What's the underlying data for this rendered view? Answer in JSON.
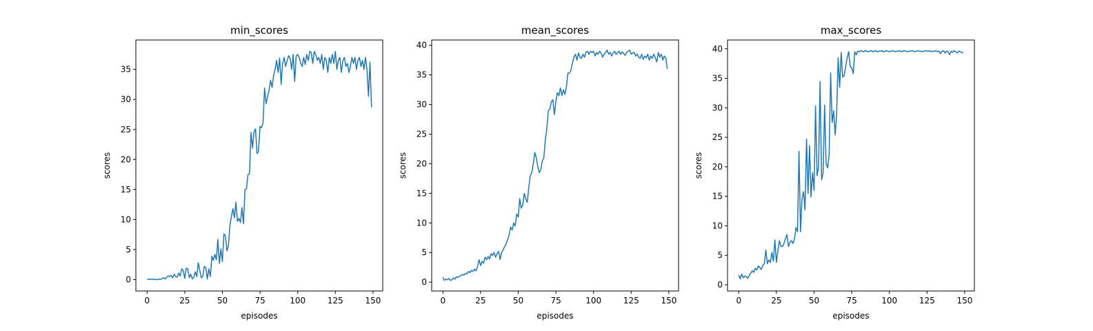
{
  "chart_data": [
    {
      "type": "line",
      "title": "min_scores",
      "x_label": "episodes",
      "y_label": "scores",
      "color": "#1f77b4",
      "x": [
        0,
        1,
        2,
        3,
        4,
        5,
        6,
        7,
        8,
        9,
        10,
        11,
        12,
        13,
        14,
        15,
        16,
        17,
        18,
        19,
        20,
        21,
        22,
        23,
        24,
        25,
        26,
        27,
        28,
        29,
        30,
        31,
        32,
        33,
        34,
        35,
        36,
        37,
        38,
        39,
        40,
        41,
        42,
        43,
        44,
        45,
        46,
        47,
        48,
        49,
        50,
        51,
        52,
        53,
        54,
        55,
        56,
        57,
        58,
        59,
        60,
        61,
        62,
        63,
        64,
        65,
        66,
        67,
        68,
        69,
        70,
        71,
        72,
        73,
        74,
        75,
        76,
        77,
        78,
        79,
        80,
        81,
        82,
        83,
        84,
        85,
        86,
        87,
        88,
        89,
        90,
        91,
        92,
        93,
        94,
        95,
        96,
        97,
        98,
        99,
        100,
        101,
        102,
        103,
        104,
        105,
        106,
        107,
        108,
        109,
        110,
        111,
        112,
        113,
        114,
        115,
        116,
        117,
        118,
        119,
        120,
        121,
        122,
        123,
        124,
        125,
        126,
        127,
        128,
        129,
        130,
        131,
        132,
        133,
        134,
        135,
        136,
        137,
        138,
        139,
        140,
        141,
        142,
        143,
        144,
        145,
        146,
        147,
        148,
        149
      ],
      "values": [
        0.1,
        0.05,
        0.0,
        0.1,
        0.0,
        0.05,
        0.0,
        0.0,
        0.1,
        0.0,
        0.2,
        0.3,
        0.1,
        0.4,
        0.6,
        0.5,
        0.7,
        0.3,
        0.9,
        0.5,
        0.4,
        1.1,
        0.6,
        1.8,
        1.5,
        0.2,
        1.9,
        1.8,
        0.3,
        0.9,
        0.1,
        0.4,
        1.3,
        0.5,
        2.8,
        1.5,
        0.3,
        0.6,
        2.2,
        2.0,
        0.1,
        1.8,
        0.5,
        3.9,
        3.2,
        4.2,
        3.3,
        6.7,
        2.7,
        5.1,
        3.0,
        7.6,
        7.3,
        4.8,
        5.6,
        9.0,
        10.5,
        11.8,
        10.3,
        12.9,
        9.7,
        10.2,
        9.5,
        12.0,
        9.3,
        15.0,
        15.1,
        17.5,
        17.6,
        24.5,
        21.9,
        24.6,
        25.1,
        21.0,
        21.4,
        25.5,
        25.3,
        26.1,
        31.9,
        29.3,
        30.5,
        31.5,
        33.2,
        32.0,
        34.0,
        35.0,
        36.5,
        34.5,
        36.9,
        32.5,
        36.0,
        37.0,
        35.5,
        36.5,
        37.3,
        36.8,
        35.0,
        37.5,
        33.0,
        37.2,
        37.5,
        37.0,
        36.0,
        35.5,
        37.0,
        35.8,
        37.5,
        36.5,
        38.0,
        37.8,
        36.0,
        38.0,
        37.5,
        36.5,
        37.0,
        36.0,
        37.5,
        35.0,
        37.0,
        36.5,
        34.5,
        37.0,
        36.0,
        37.5,
        36.0,
        38.0,
        35.0,
        36.5,
        37.0,
        34.5,
        36.5,
        37.0,
        35.5,
        36.0,
        34.5,
        35.5,
        37.0,
        36.0,
        37.0,
        35.0,
        36.5,
        37.0,
        35.5,
        36.5,
        35.0,
        37.0,
        35.0,
        30.5,
        36.2,
        28.7
      ],
      "xlim": [
        -7.45,
        156.45
      ],
      "xticks": [
        0,
        25,
        50,
        75,
        100,
        125,
        150
      ],
      "ylim": [
        -1.9,
        39.9
      ],
      "yticks": [
        0,
        5,
        10,
        15,
        20,
        25,
        30,
        35
      ]
    },
    {
      "type": "line",
      "title": "mean_scores",
      "x_label": "episodes",
      "y_label": "scores",
      "color": "#1f77b4",
      "x": [
        0,
        1,
        2,
        3,
        4,
        5,
        6,
        7,
        8,
        9,
        10,
        11,
        12,
        13,
        14,
        15,
        16,
        17,
        18,
        19,
        20,
        21,
        22,
        23,
        24,
        25,
        26,
        27,
        28,
        29,
        30,
        31,
        32,
        33,
        34,
        35,
        36,
        37,
        38,
        39,
        40,
        41,
        42,
        43,
        44,
        45,
        46,
        47,
        48,
        49,
        50,
        51,
        52,
        53,
        54,
        55,
        56,
        57,
        58,
        59,
        60,
        61,
        62,
        63,
        64,
        65,
        66,
        67,
        68,
        69,
        70,
        71,
        72,
        73,
        74,
        75,
        76,
        77,
        78,
        79,
        80,
        81,
        82,
        83,
        84,
        85,
        86,
        87,
        88,
        89,
        90,
        91,
        92,
        93,
        94,
        95,
        96,
        97,
        98,
        99,
        100,
        101,
        102,
        103,
        104,
        105,
        106,
        107,
        108,
        109,
        110,
        111,
        112,
        113,
        114,
        115,
        116,
        117,
        118,
        119,
        120,
        121,
        122,
        123,
        124,
        125,
        126,
        127,
        128,
        129,
        130,
        131,
        132,
        133,
        134,
        135,
        136,
        137,
        138,
        139,
        140,
        141,
        142,
        143,
        144,
        145,
        146,
        147,
        148,
        149
      ],
      "values": [
        0.8,
        0.3,
        0.5,
        0.4,
        0.6,
        0.3,
        0.4,
        0.7,
        0.5,
        0.9,
        0.8,
        1.0,
        1.1,
        1.3,
        1.2,
        1.5,
        1.4,
        1.8,
        1.6,
        2.0,
        1.8,
        2.2,
        1.9,
        2.6,
        3.8,
        2.8,
        3.5,
        3.2,
        4.2,
        3.8,
        4.3,
        3.9,
        4.8,
        4.5,
        5.0,
        4.2,
        4.8,
        5.2,
        3.8,
        5.0,
        5.5,
        6.0,
        6.5,
        7.2,
        8.0,
        9.3,
        8.8,
        10.0,
        9.5,
        11.5,
        11.0,
        14.1,
        12.5,
        13.0,
        15.0,
        14.0,
        13.5,
        16.0,
        18.0,
        18.5,
        20.0,
        21.9,
        21.0,
        19.5,
        18.5,
        19.0,
        20.5,
        21.0,
        24.0,
        26.0,
        29.0,
        29.2,
        30.5,
        30.8,
        28.3,
        30.5,
        32.0,
        31.5,
        32.8,
        31.5,
        32.5,
        31.7,
        33.0,
        35.3,
        35.3,
        35.8,
        37.0,
        38.0,
        38.5,
        37.5,
        38.7,
        38.0,
        37.8,
        38.5,
        38.0,
        38.8,
        39.0,
        38.5,
        39.0,
        38.8,
        39.0,
        38.2,
        38.8,
        38.5,
        39.0,
        38.7,
        38.0,
        38.5,
        38.8,
        39.2,
        38.5,
        38.8,
        38.2,
        38.7,
        39.0,
        38.5,
        38.8,
        39.0,
        38.5,
        38.9,
        38.6,
        38.3,
        38.8,
        39.0,
        39.2,
        38.5,
        38.7,
        38.8,
        38.2,
        38.5,
        38.0,
        37.8,
        38.5,
        37.6,
        38.2,
        37.9,
        38.5,
        37.5,
        38.2,
        37.8,
        38.5,
        37.9,
        37.2,
        38.8,
        38.0,
        38.5,
        37.5,
        38.2,
        37.8,
        36.0
      ],
      "xlim": [
        -7.45,
        156.45
      ],
      "xticks": [
        0,
        25,
        50,
        75,
        100,
        125,
        150
      ],
      "ylim": [
        -1.5,
        40.9
      ],
      "yticks": [
        0,
        5,
        10,
        15,
        20,
        25,
        30,
        35,
        40
      ]
    },
    {
      "type": "line",
      "title": "max_scores",
      "x_label": "episodes",
      "y_label": "scores",
      "color": "#1f77b4",
      "x": [
        0,
        1,
        2,
        3,
        4,
        5,
        6,
        7,
        8,
        9,
        10,
        11,
        12,
        13,
        14,
        15,
        16,
        17,
        18,
        19,
        20,
        21,
        22,
        23,
        24,
        25,
        26,
        27,
        28,
        29,
        30,
        31,
        32,
        33,
        34,
        35,
        36,
        37,
        38,
        39,
        40,
        41,
        42,
        43,
        44,
        45,
        46,
        47,
        48,
        49,
        50,
        51,
        52,
        53,
        54,
        55,
        56,
        57,
        58,
        59,
        60,
        61,
        62,
        63,
        64,
        65,
        66,
        67,
        68,
        69,
        70,
        71,
        72,
        73,
        74,
        75,
        76,
        77,
        78,
        79,
        80,
        81,
        82,
        83,
        84,
        85,
        86,
        87,
        88,
        89,
        90,
        91,
        92,
        93,
        94,
        95,
        96,
        97,
        98,
        99,
        100,
        101,
        102,
        103,
        104,
        105,
        106,
        107,
        108,
        109,
        110,
        111,
        112,
        113,
        114,
        115,
        116,
        117,
        118,
        119,
        120,
        121,
        122,
        123,
        124,
        125,
        126,
        127,
        128,
        129,
        130,
        131,
        132,
        133,
        134,
        135,
        136,
        137,
        138,
        139,
        140,
        141,
        142,
        143,
        144,
        145,
        146,
        147,
        148,
        149
      ],
      "values": [
        1.7,
        1.0,
        1.8,
        1.2,
        1.5,
        1.4,
        1.1,
        1.6,
        2.0,
        2.4,
        2.1,
        2.8,
        2.5,
        3.2,
        2.9,
        2.6,
        3.3,
        3.6,
        5.9,
        3.6,
        4.2,
        3.8,
        5.5,
        4.0,
        7.6,
        3.8,
        5.8,
        7.5,
        6.5,
        6.5,
        7.0,
        7.8,
        8.5,
        6.5,
        7.2,
        7.5,
        7.0,
        7.8,
        9.7,
        9.0,
        22.6,
        9.0,
        14.5,
        15.8,
        12.7,
        24.7,
        15.5,
        23.6,
        14.9,
        19.0,
        16.0,
        30.3,
        18.5,
        20.0,
        34.5,
        17.8,
        18.9,
        30.5,
        20.5,
        19.8,
        22.0,
        35.9,
        27.5,
        29.5,
        25.4,
        29.0,
        38.5,
        33.5,
        39.4,
        35.2,
        35.5,
        37.0,
        38.5,
        39.5,
        37.0,
        36.8,
        35.8,
        39.5,
        39.0,
        39.6,
        39.5,
        39.7,
        39.6,
        39.5,
        39.7,
        39.6,
        39.5,
        39.6,
        39.7,
        39.5,
        39.6,
        39.7,
        39.5,
        39.6,
        39.6,
        39.7,
        39.5,
        39.6,
        39.7,
        39.6,
        39.5,
        39.6,
        39.7,
        39.6,
        39.5,
        39.6,
        39.6,
        39.7,
        39.5,
        39.6,
        39.7,
        39.6,
        39.5,
        39.6,
        39.6,
        39.7,
        39.6,
        39.5,
        39.6,
        39.7,
        39.6,
        39.6,
        39.5,
        39.6,
        39.7,
        39.6,
        39.6,
        39.7,
        39.5,
        39.6,
        39.6,
        39.7,
        39.5,
        39.6,
        39.2,
        39.6,
        39.7,
        39.3,
        39.6,
        39.5,
        39.0,
        39.6,
        39.4,
        39.7,
        39.5,
        39.3,
        39.6,
        39.5,
        39.4,
        39.3
      ],
      "xlim": [
        -7.45,
        156.45
      ],
      "xticks": [
        0,
        25,
        50,
        75,
        100,
        125,
        150
      ],
      "ylim": [
        -1.05,
        41.5
      ],
      "yticks": [
        0,
        5,
        10,
        15,
        20,
        25,
        30,
        35,
        40
      ]
    }
  ]
}
